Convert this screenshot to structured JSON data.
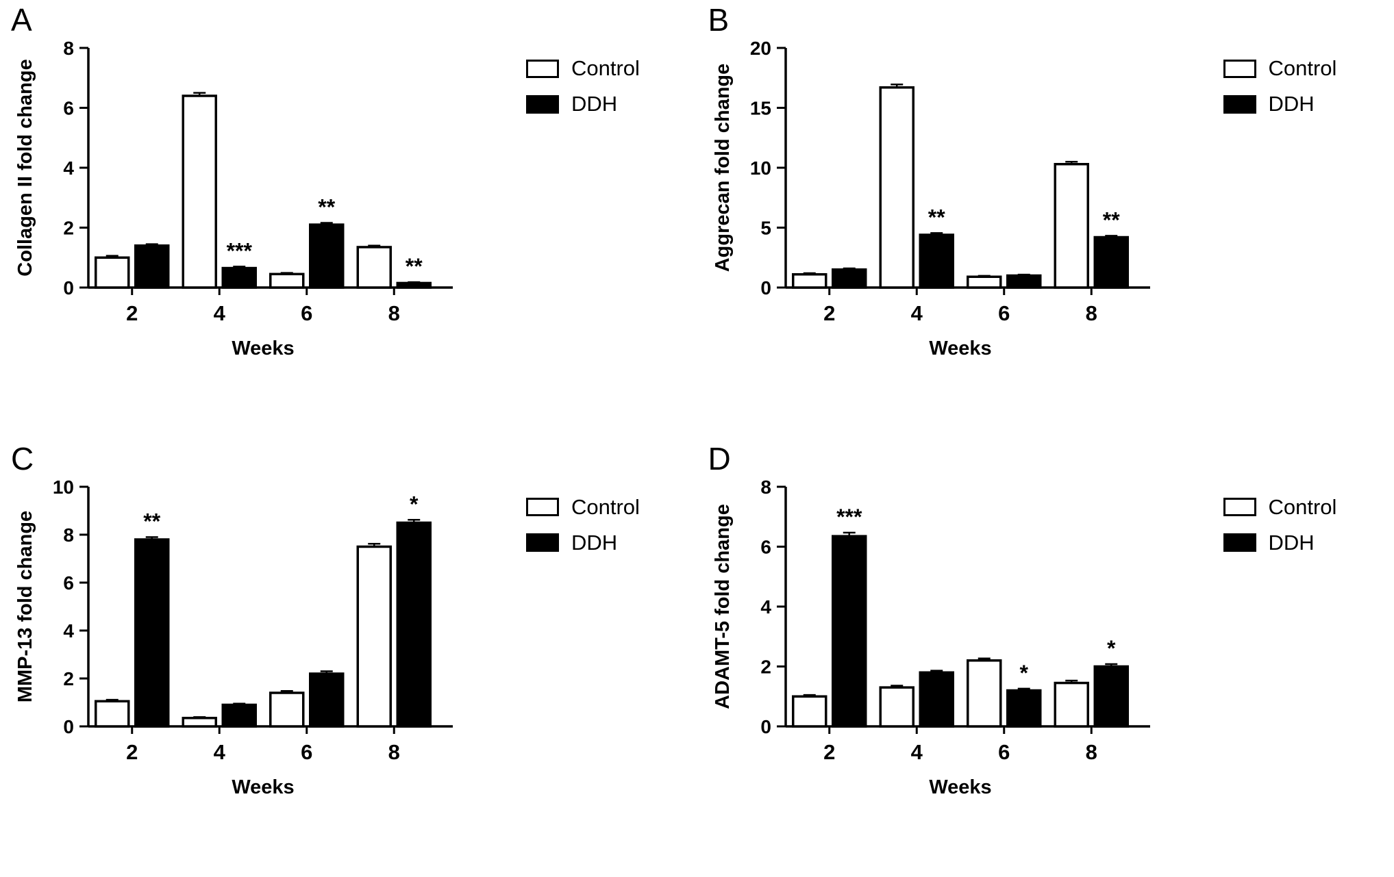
{
  "legend": {
    "control": "Control",
    "ddh": "DDH"
  },
  "colors": {
    "control_fill": "#ffffff",
    "ddh_fill": "#000000",
    "axis": "#000000"
  },
  "chart_data": [
    {
      "type": "bar",
      "panel": "A",
      "title": "",
      "ylabel": "Collagen II fold change",
      "xlabel": "Weeks",
      "ylim": [
        0,
        8
      ],
      "yticks": [
        0,
        2,
        4,
        6,
        8
      ],
      "categories": [
        "2",
        "4",
        "6",
        "8"
      ],
      "grid": false,
      "legend_position": "right",
      "series": [
        {
          "name": "Control",
          "fill": "#ffffff",
          "values": [
            1.0,
            6.4,
            0.45,
            1.35
          ],
          "errors": [
            0.06,
            0.1,
            0.04,
            0.05
          ]
        },
        {
          "name": "DDH",
          "fill": "#000000",
          "values": [
            1.4,
            0.65,
            2.1,
            0.15
          ],
          "errors": [
            0.05,
            0.05,
            0.06,
            0.03
          ]
        }
      ],
      "annotations": [
        {
          "group": 1,
          "series": 1,
          "text": "***"
        },
        {
          "group": 2,
          "series": 1,
          "text": "**"
        },
        {
          "group": 3,
          "series": 1,
          "text": "**"
        }
      ]
    },
    {
      "type": "bar",
      "panel": "B",
      "title": "",
      "ylabel": "Aggrecan fold change",
      "xlabel": "Weeks",
      "ylim": [
        0,
        20
      ],
      "yticks": [
        0,
        5,
        10,
        15,
        20
      ],
      "categories": [
        "2",
        "4",
        "6",
        "8"
      ],
      "grid": false,
      "legend_position": "right",
      "series": [
        {
          "name": "Control",
          "fill": "#ffffff",
          "values": [
            1.1,
            16.7,
            0.9,
            10.3
          ],
          "errors": [
            0.1,
            0.25,
            0.08,
            0.2
          ]
        },
        {
          "name": "DDH",
          "fill": "#000000",
          "values": [
            1.5,
            4.4,
            1.0,
            4.2
          ],
          "errors": [
            0.1,
            0.15,
            0.08,
            0.12
          ]
        }
      ],
      "annotations": [
        {
          "group": 1,
          "series": 1,
          "text": "**"
        },
        {
          "group": 3,
          "series": 1,
          "text": "**"
        }
      ]
    },
    {
      "type": "bar",
      "panel": "C",
      "title": "",
      "ylabel": "MMP-13 fold change",
      "xlabel": "Weeks",
      "ylim": [
        0,
        10
      ],
      "yticks": [
        0,
        2,
        4,
        6,
        8,
        10
      ],
      "categories": [
        "2",
        "4",
        "6",
        "8"
      ],
      "grid": false,
      "legend_position": "right",
      "series": [
        {
          "name": "Control",
          "fill": "#ffffff",
          "values": [
            1.05,
            0.35,
            1.4,
            7.5
          ],
          "errors": [
            0.06,
            0.04,
            0.08,
            0.12
          ]
        },
        {
          "name": "DDH",
          "fill": "#000000",
          "values": [
            7.8,
            0.9,
            2.2,
            8.5
          ],
          "errors": [
            0.1,
            0.05,
            0.1,
            0.12
          ]
        }
      ],
      "annotations": [
        {
          "group": 0,
          "series": 1,
          "text": "**"
        },
        {
          "group": 3,
          "series": 1,
          "text": "*"
        }
      ]
    },
    {
      "type": "bar",
      "panel": "D",
      "title": "",
      "ylabel": "ADAMT-5 fold change",
      "xlabel": "Weeks",
      "ylim": [
        0,
        8
      ],
      "yticks": [
        0,
        2,
        4,
        6,
        8
      ],
      "categories": [
        "2",
        "4",
        "6",
        "8"
      ],
      "grid": false,
      "legend_position": "right",
      "series": [
        {
          "name": "Control",
          "fill": "#ffffff",
          "values": [
            1.0,
            1.3,
            2.2,
            1.45
          ],
          "errors": [
            0.05,
            0.06,
            0.07,
            0.08
          ]
        },
        {
          "name": "DDH",
          "fill": "#000000",
          "values": [
            6.35,
            1.8,
            1.2,
            2.0
          ],
          "errors": [
            0.12,
            0.06,
            0.06,
            0.08
          ]
        }
      ],
      "annotations": [
        {
          "group": 0,
          "series": 1,
          "text": "***"
        },
        {
          "group": 2,
          "series": 1,
          "text": "*"
        },
        {
          "group": 3,
          "series": 1,
          "text": "*"
        }
      ]
    }
  ]
}
